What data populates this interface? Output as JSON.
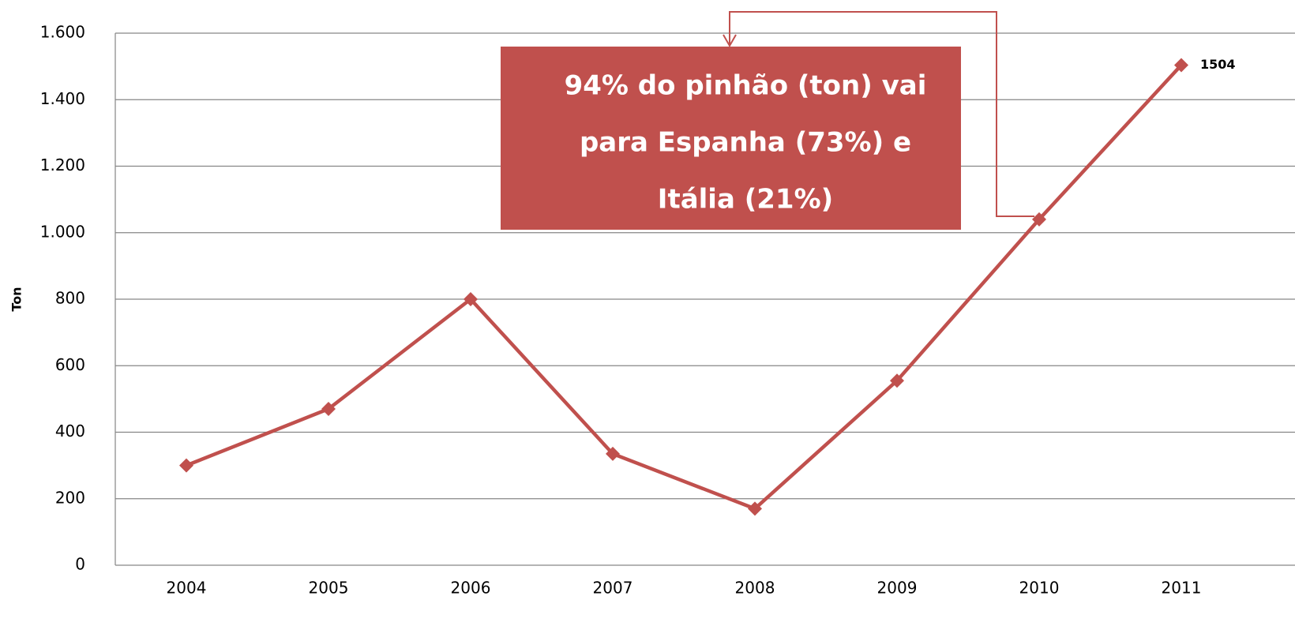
{
  "chart_data": {
    "type": "line",
    "y_label": "Ton",
    "categories": [
      "2004",
      "2005",
      "2006",
      "2007",
      "2008",
      "2009",
      "2010",
      "2011"
    ],
    "values": [
      300,
      470,
      800,
      335,
      170,
      555,
      1040,
      1504
    ],
    "color": "#c0504d",
    "ylim": [
      0,
      1600
    ],
    "yticks": [
      0,
      200,
      400,
      600,
      800,
      {
        "value": 1000,
        "label": "1.000"
      },
      {
        "value": 1200,
        "label": "1.200"
      },
      {
        "value": 1400,
        "label": "1.400"
      },
      {
        "value": 1600,
        "label": "1.600"
      }
    ],
    "grid": true,
    "annotation": [
      "94% do pinhão (ton) vai",
      "para Espanha (73%) e",
      "Itália (21%)"
    ]
  }
}
